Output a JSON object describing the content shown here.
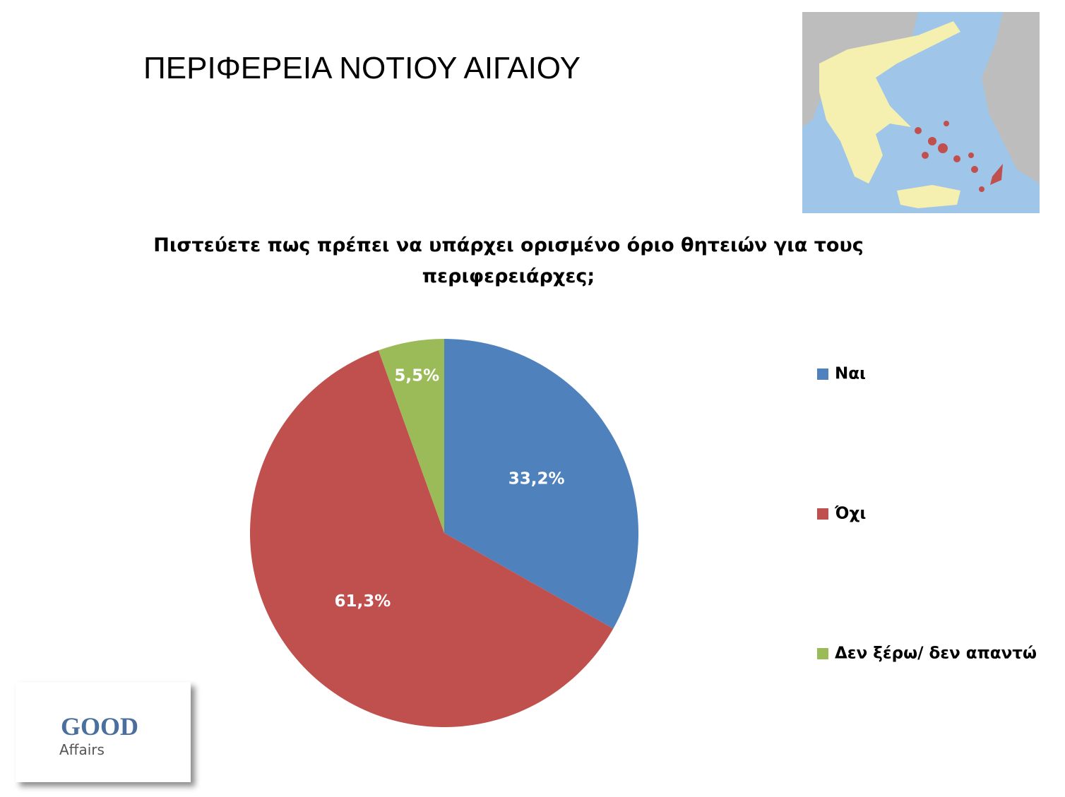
{
  "header": {
    "title": "ΠΕΡΙΦΕΡΕΙΑ ΝΟΤΙΟΥ ΑΙΓΑΙΟΥ"
  },
  "chart_data": {
    "type": "pie",
    "title": "Πιστεύετε πως πρέπει να υπάρχει ορισμένο όριο θητειών για τους περιφερειάρχες;",
    "categories": [
      "Ναι",
      "Όχι",
      "Δεν ξέρω/ δεν απαντώ"
    ],
    "values": [
      33.2,
      61.3,
      5.5
    ],
    "value_labels": [
      "33,2%",
      "61,3%",
      "5,5%"
    ],
    "colors": [
      "#4f81bd",
      "#c0504d",
      "#9bbb59"
    ],
    "legend": "right"
  },
  "logo": {
    "line1": "GOOD",
    "line2": "Affairs"
  }
}
